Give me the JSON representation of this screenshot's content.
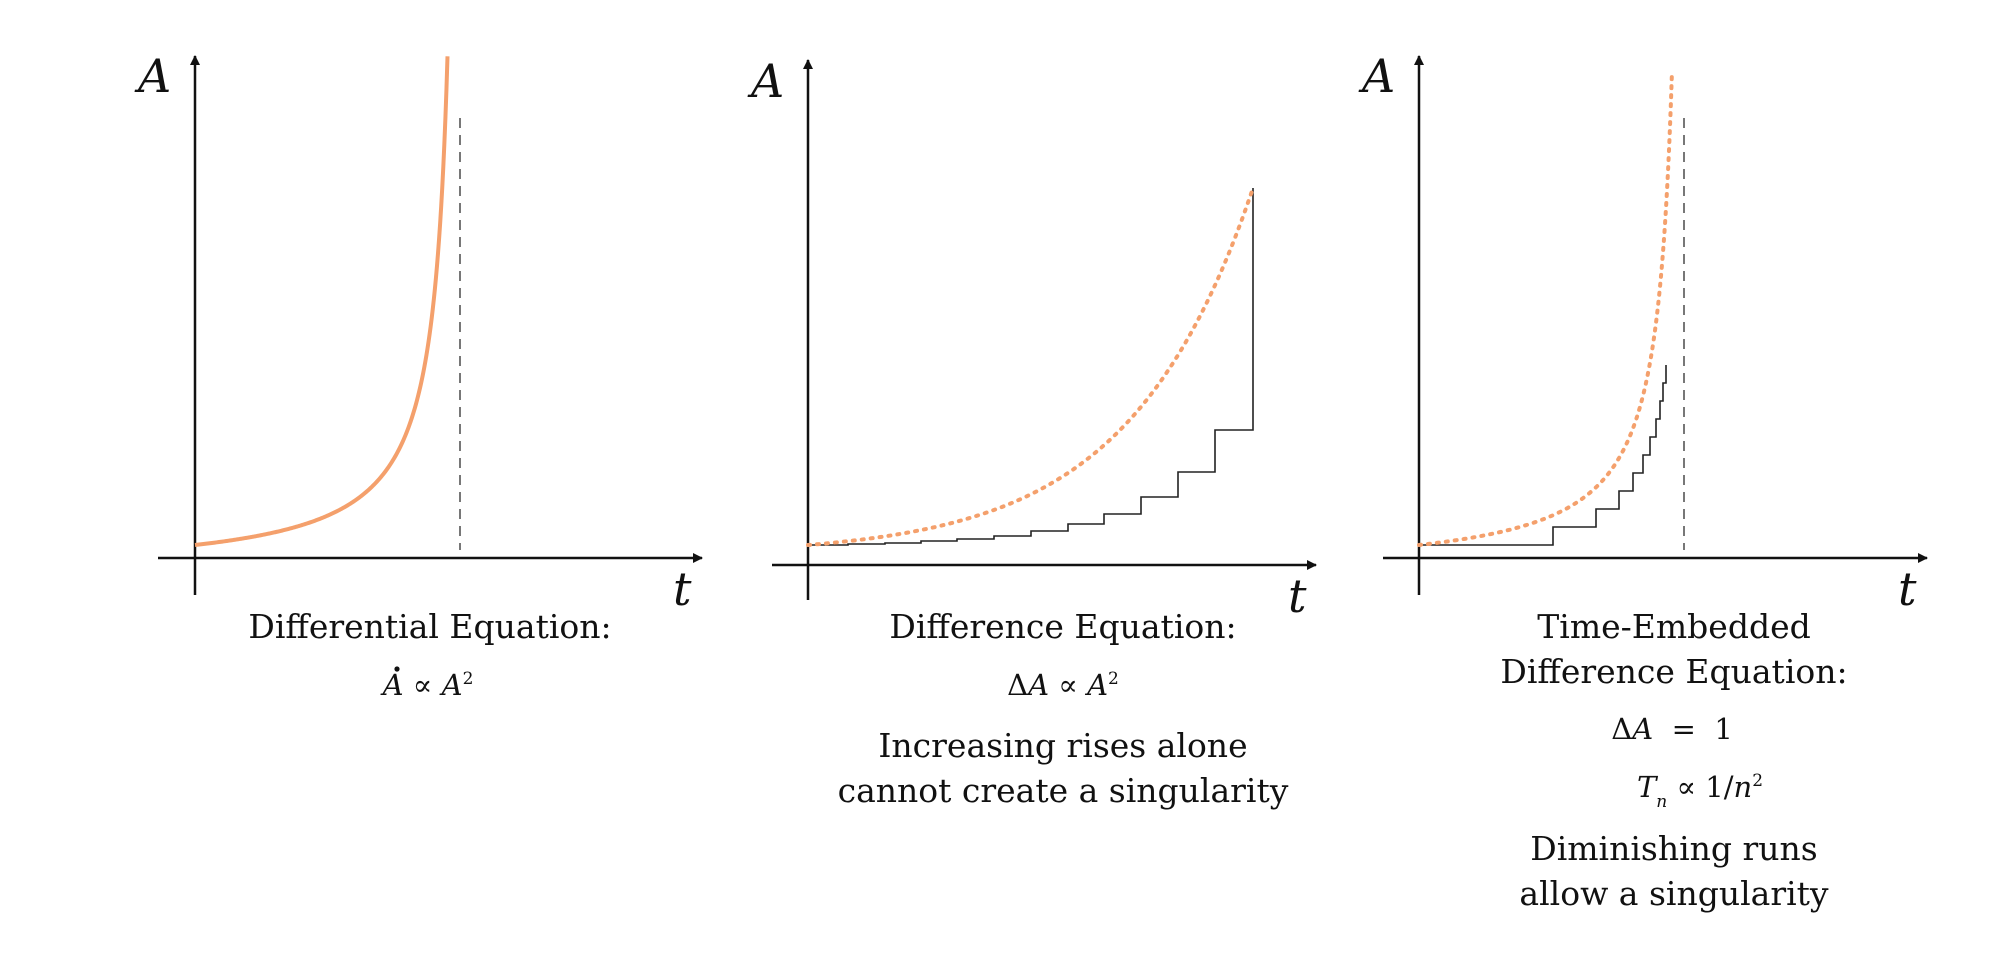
{
  "colors": {
    "curve": "#f4a06c",
    "axis": "#111111",
    "steps": "#222222",
    "asymptote": "#777777"
  },
  "panels": [
    {
      "id": "differential",
      "y_axis_label": "A",
      "x_axis_label": "t",
      "caption_lines": [
        "Differential Equation:"
      ],
      "equations": [
        {
          "parts": [
            {
              "t": "A",
              "v": true
            },
            {
              "t": " ∝ "
            },
            {
              "t": "A",
              "v": true
            },
            {
              "t": "2",
              "sup": true
            }
          ],
          "dot_over_first": true
        }
      ],
      "notes": []
    },
    {
      "id": "difference",
      "y_axis_label": "A",
      "x_axis_label": "t",
      "caption_lines": [
        "Difference Equation:"
      ],
      "equations": [
        {
          "parts": [
            {
              "t": "Δ"
            },
            {
              "t": "A",
              "v": true
            },
            {
              "t": " ∝ "
            },
            {
              "t": "A",
              "v": true
            },
            {
              "t": "2",
              "sup": true
            }
          ]
        }
      ],
      "notes": [
        "Increasing rises alone",
        "cannot create a singularity"
      ]
    },
    {
      "id": "time-embedded",
      "y_axis_label": "A",
      "x_axis_label": "t",
      "caption_lines": [
        "Time-Embedded",
        "Difference Equation:"
      ],
      "equations": [
        {
          "parts": [
            {
              "t": "Δ"
            },
            {
              "t": "A",
              "v": true
            },
            {
              "t": "  =  1"
            }
          ]
        },
        {
          "parts": [
            {
              "t": "T",
              "v": true
            },
            {
              "t": "n",
              "v": true,
              "sub": true
            },
            {
              "t": " ∝ 1/"
            },
            {
              "t": "n",
              "v": true
            },
            {
              "t": "2",
              "sup": true
            }
          ]
        }
      ],
      "notes": [
        "Diminishing runs",
        "allow a singularity"
      ]
    }
  ]
}
